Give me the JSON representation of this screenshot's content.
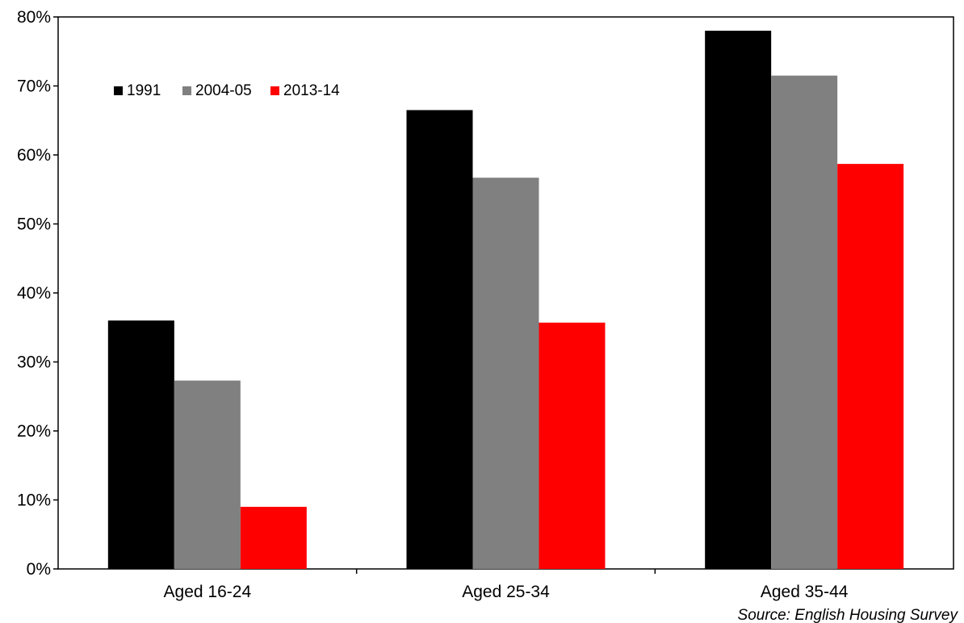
{
  "chart_data": {
    "type": "bar",
    "categories": [
      "Aged 16-24",
      "Aged 25-34",
      "Aged 35-44"
    ],
    "series": [
      {
        "name": "1991",
        "color": "#000000",
        "values": [
          36,
          66.5,
          78
        ]
      },
      {
        "name": "2004-05",
        "color": "#808080",
        "values": [
          27.3,
          56.7,
          71.5
        ]
      },
      {
        "name": "2013-14",
        "color": "#ff0000",
        "values": [
          9,
          35.7,
          58.7
        ]
      }
    ],
    "ylim": [
      0,
      80
    ],
    "yticks": [
      "0%",
      "10%",
      "20%",
      "30%",
      "40%",
      "50%",
      "60%",
      "70%",
      "80%"
    ],
    "legend_position": "top-left",
    "grid": false,
    "source": "Source: English Housing Survey"
  }
}
